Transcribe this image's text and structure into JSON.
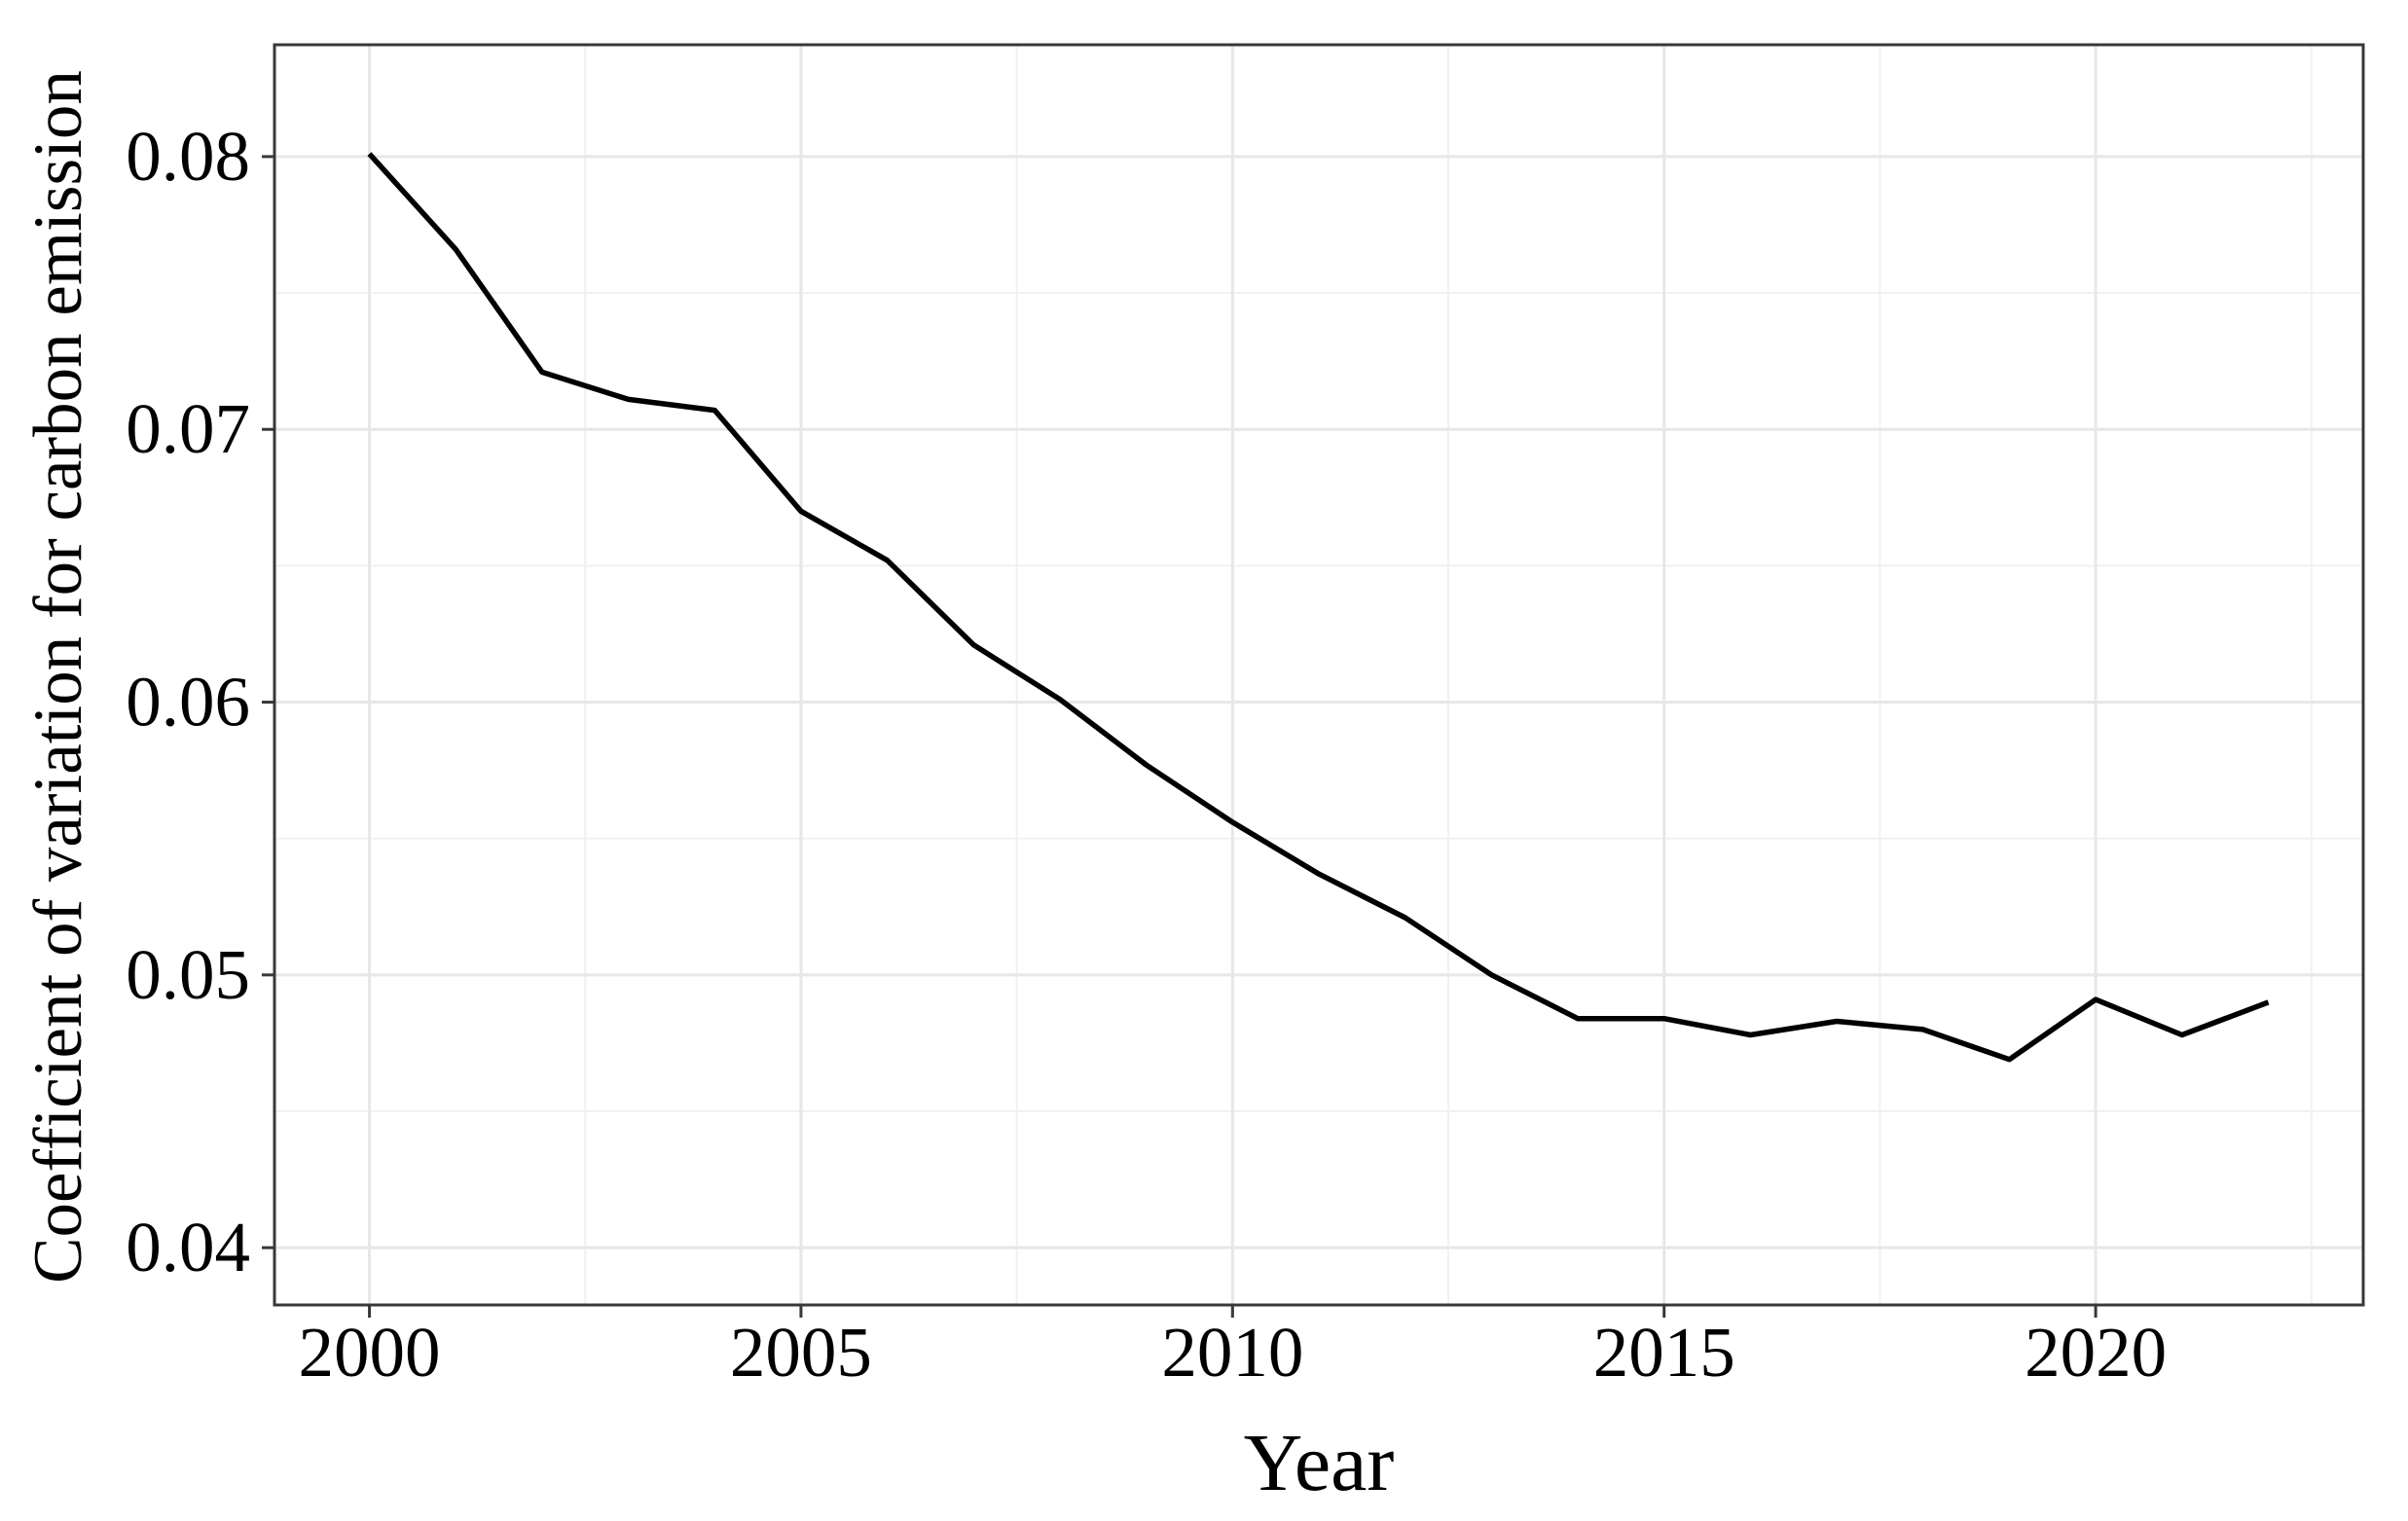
{
  "chart_data": {
    "type": "line",
    "title": "",
    "xlabel": "Year",
    "ylabel": "Coefficient of variation for carbon emission",
    "x": [
      2000,
      2001,
      2002,
      2003,
      2004,
      2005,
      2006,
      2007,
      2008,
      2009,
      2010,
      2011,
      2012,
      2013,
      2014,
      2015,
      2016,
      2017,
      2018,
      2019,
      2020,
      2021,
      2022
    ],
    "values": [
      0.0801,
      0.0766,
      0.0721,
      0.0711,
      0.0707,
      0.067,
      0.0652,
      0.0621,
      0.0601,
      0.0577,
      0.0556,
      0.0537,
      0.0521,
      0.05,
      0.0484,
      0.0484,
      0.0478,
      0.0483,
      0.048,
      0.0469,
      0.0491,
      0.0478,
      0.049
    ],
    "series": [
      {
        "name": "Coefficient of variation for carbon emission",
        "values": [
          0.0801,
          0.0766,
          0.0721,
          0.0711,
          0.0707,
          0.067,
          0.0652,
          0.0621,
          0.0601,
          0.0577,
          0.0556,
          0.0537,
          0.0521,
          0.05,
          0.0484,
          0.0484,
          0.0478,
          0.0483,
          0.048,
          0.0469,
          0.0491,
          0.0478,
          0.049
        ]
      }
    ],
    "xlim": [
      1998.9,
      2023.1
    ],
    "ylim": [
      0.0379,
      0.0841
    ],
    "x_major_ticks": [
      2000,
      2005,
      2010,
      2015,
      2020
    ],
    "x_tick_labels": [
      "2000",
      "2005",
      "2010",
      "2015",
      "2020"
    ],
    "x_minor_ticks": [
      2002.5,
      2007.5,
      2012.5,
      2017.5,
      2022.5
    ],
    "y_major_ticks": [
      0.04,
      0.05,
      0.06,
      0.07,
      0.08
    ],
    "y_tick_labels": [
      "0.04",
      "0.05",
      "0.06",
      "0.07",
      "0.08"
    ],
    "y_minor_ticks": [
      0.045,
      0.055,
      0.065,
      0.075
    ],
    "grid": "major+minor",
    "legend": "none",
    "colors": {
      "line": "#000000",
      "grid_major": "#e7e7e7",
      "grid_minor": "#f1f1f1",
      "panel_border": "#383838",
      "tick": "#383838",
      "text": "#000000",
      "background": "#ffffff"
    }
  }
}
